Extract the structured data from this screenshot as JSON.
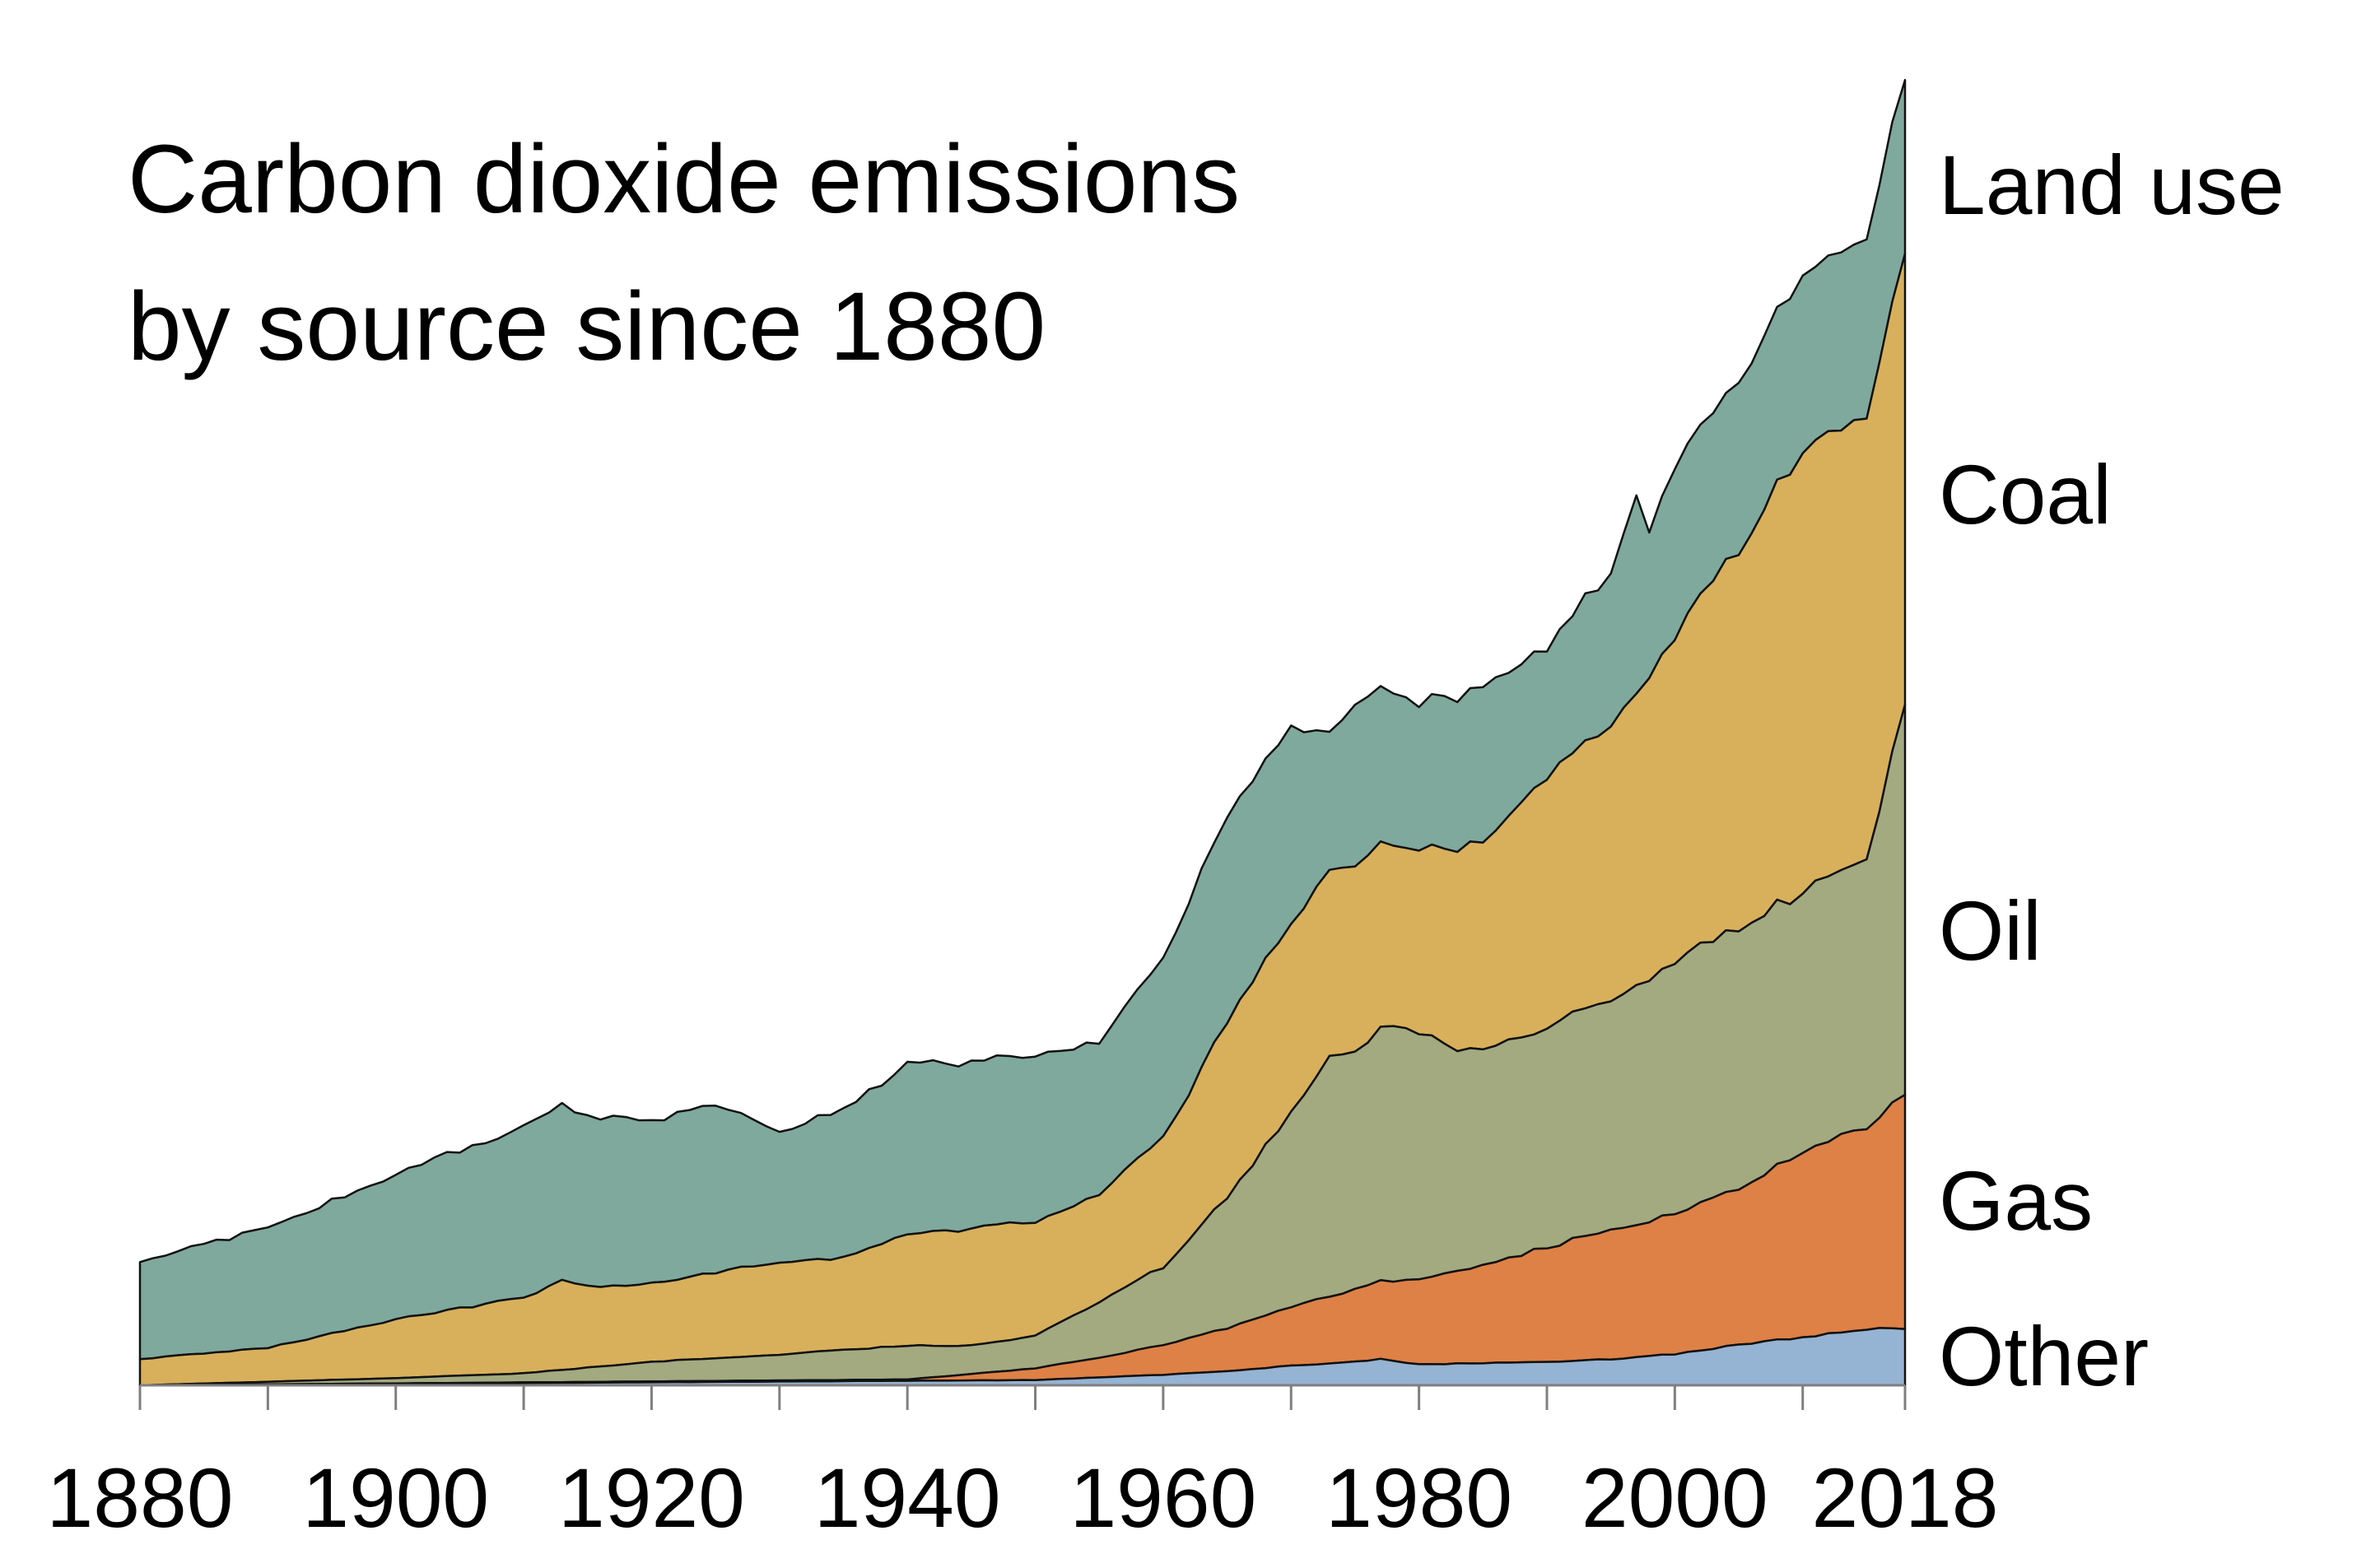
{
  "title_lines": [
    "Carbon dioxide emissions",
    "by source since 1880"
  ],
  "colors": {
    "other": "#95b3d3",
    "gas": "#de8146",
    "oil": "#a3aa80",
    "coal": "#d8b05c",
    "land_use": "#7fa99c"
  },
  "chart_data": {
    "type": "area",
    "stacked": true,
    "title": "Carbon dioxide emissions by source since 1880",
    "xlabel": "",
    "ylabel": "",
    "xlim": [
      1880,
      2018
    ],
    "ylim": [
      0,
      1
    ],
    "x_ticks": [
      1880,
      1890,
      1900,
      1910,
      1920,
      1930,
      1940,
      1950,
      1960,
      1970,
      1980,
      1990,
      2000,
      2010,
      2018
    ],
    "x_tick_labels": [
      "1880",
      "1900",
      "1920",
      "1940",
      "1960",
      "1980",
      "2000",
      "2018"
    ],
    "x_tick_label_years": [
      1880,
      1900,
      1920,
      1940,
      1960,
      1980,
      2000,
      2018
    ],
    "grid": false,
    "legend": "right-edge labels",
    "y_units": "relative (no y-axis printed)",
    "series": [
      {
        "name": "Other",
        "key": "other",
        "x": [
          1880,
          1950,
          1955,
          1960,
          1965,
          1970,
          1975,
          1977,
          1980,
          1985,
          1990,
          1995,
          2000,
          2005,
          2010,
          2015,
          2018
        ],
        "values": [
          0,
          0.004,
          0.006,
          0.008,
          0.011,
          0.015,
          0.018,
          0.02,
          0.016,
          0.017,
          0.018,
          0.02,
          0.024,
          0.031,
          0.037,
          0.043,
          0.044
        ]
      },
      {
        "name": "Gas",
        "key": "gas",
        "x": [
          1880,
          1940,
          1950,
          1955,
          1960,
          1965,
          1970,
          1975,
          1980,
          1985,
          1990,
          1995,
          2000,
          2005,
          2010,
          2015,
          2018
        ],
        "values": [
          0,
          0.001,
          0.009,
          0.015,
          0.023,
          0.033,
          0.045,
          0.056,
          0.065,
          0.075,
          0.088,
          0.1,
          0.107,
          0.121,
          0.142,
          0.156,
          0.178
        ]
      },
      {
        "name": "Oil",
        "key": "oil",
        "x": [
          1880,
          1900,
          1910,
          1920,
          1930,
          1940,
          1945,
          1950,
          1955,
          1960,
          1965,
          1970,
          1973,
          1975,
          1978,
          1980,
          1983,
          1985,
          1990,
          1995,
          2000,
          2005,
          2008,
          2009,
          2010,
          2015,
          2018
        ],
        "values": [
          0,
          0.004,
          0.007,
          0.015,
          0.02,
          0.026,
          0.022,
          0.025,
          0.043,
          0.06,
          0.1,
          0.15,
          0.185,
          0.185,
          0.195,
          0.19,
          0.17,
          0.165,
          0.168,
          0.178,
          0.195,
          0.2,
          0.2,
          0.195,
          0.2,
          0.208,
          0.297
        ]
      },
      {
        "name": "Coal",
        "key": "coal",
        "x": [
          1880,
          1890,
          1900,
          1910,
          1913,
          1915,
          1920,
          1925,
          1930,
          1935,
          1940,
          1945,
          1950,
          1955,
          1960,
          1965,
          1970,
          1975,
          1980,
          1985,
          1990,
          1995,
          2000,
          2002,
          2005,
          2010,
          2015,
          2018
        ],
        "values": [
          0.02,
          0.026,
          0.045,
          0.058,
          0.068,
          0.062,
          0.06,
          0.066,
          0.071,
          0.07,
          0.085,
          0.09,
          0.088,
          0.082,
          0.1,
          0.133,
          0.146,
          0.142,
          0.14,
          0.16,
          0.193,
          0.212,
          0.248,
          0.27,
          0.29,
          0.34,
          0.34,
          0.347
        ]
      },
      {
        "name": "Land use",
        "key": "land_use",
        "x": [
          1880,
          1890,
          1900,
          1910,
          1913,
          1920,
          1925,
          1930,
          1935,
          1940,
          1945,
          1950,
          1955,
          1960,
          1965,
          1970,
          1973,
          1975,
          1980,
          1985,
          1990,
          1995,
          1997,
          1998,
          2000,
          2005,
          2010,
          2015,
          2018
        ],
        "values": [
          0.075,
          0.092,
          0.112,
          0.13,
          0.135,
          0.124,
          0.13,
          0.1,
          0.115,
          0.13,
          0.128,
          0.13,
          0.118,
          0.135,
          0.16,
          0.15,
          0.105,
          0.125,
          0.112,
          0.12,
          0.1,
          0.118,
          0.152,
          0.11,
          0.13,
          0.13,
          0.135,
          0.138,
          0.135
        ]
      }
    ]
  }
}
